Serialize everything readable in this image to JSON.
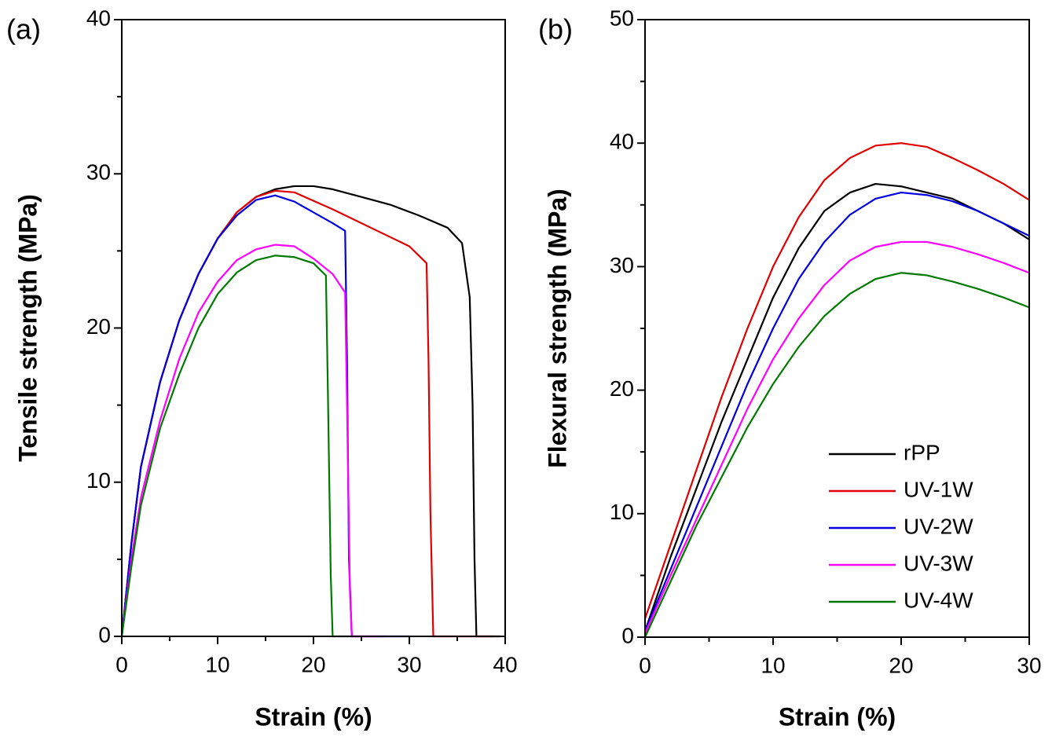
{
  "chart_data": [
    {
      "type": "line",
      "panel_label": "(a)",
      "x_label": "Strain (%)",
      "y_label": "Tensile strength (MPa)",
      "xlim": [
        0,
        40
      ],
      "xticks": [
        0,
        10,
        20,
        30,
        40
      ],
      "ylim": [
        0,
        40
      ],
      "yticks": [
        0,
        10,
        20,
        30,
        40
      ],
      "series": [
        {
          "color": "#000000",
          "x": [
            0,
            1,
            2,
            4,
            6,
            8,
            10,
            12,
            14,
            16,
            18,
            20,
            22,
            25,
            28,
            31,
            34,
            35.5,
            36.3,
            36.6,
            36.8,
            37,
            39.5
          ],
          "values": [
            0,
            6,
            11,
            16.5,
            20.5,
            23.5,
            25.8,
            27.5,
            28.5,
            29,
            29.2,
            29.2,
            29,
            28.5,
            28,
            27.3,
            26.5,
            25.5,
            22,
            15,
            5,
            0,
            0
          ]
        },
        {
          "color": "#e00000",
          "x": [
            0,
            1,
            2,
            4,
            6,
            8,
            10,
            12,
            14,
            16,
            18,
            22,
            26,
            30,
            31.8,
            32,
            32.2,
            32.5,
            39
          ],
          "values": [
            0,
            6,
            11,
            16.5,
            20.5,
            23.5,
            25.8,
            27.5,
            28.5,
            28.9,
            28.8,
            27.7,
            26.5,
            25.3,
            24.2,
            18,
            8,
            0,
            0
          ]
        },
        {
          "color": "#0000e0",
          "x": [
            0,
            1,
            2,
            4,
            6,
            8,
            10,
            12,
            14,
            16,
            18,
            20,
            22,
            23.3,
            23.5,
            23.7,
            24,
            30
          ],
          "values": [
            0,
            6,
            11,
            16.5,
            20.5,
            23.5,
            25.8,
            27.3,
            28.3,
            28.6,
            28.2,
            27.5,
            26.8,
            26.3,
            18,
            5,
            0,
            0
          ]
        },
        {
          "color": "#ff00ff",
          "x": [
            0,
            1,
            2,
            4,
            6,
            8,
            10,
            12,
            14,
            16,
            18,
            20,
            22,
            23.3,
            23.5,
            23.8,
            24,
            27.5
          ],
          "values": [
            0,
            5,
            9,
            14,
            18,
            21,
            23,
            24.4,
            25.1,
            25.4,
            25.3,
            24.5,
            23.5,
            22.3,
            15,
            3,
            0,
            0
          ]
        },
        {
          "color": "#007a00",
          "x": [
            0,
            1,
            2,
            4,
            6,
            8,
            10,
            12,
            14,
            16,
            18,
            20,
            21.3,
            21.5,
            21.8,
            22,
            24
          ],
          "values": [
            0,
            4.5,
            8.5,
            13.5,
            17,
            20,
            22.2,
            23.6,
            24.4,
            24.7,
            24.6,
            24.2,
            23.4,
            16,
            4,
            0,
            0
          ]
        }
      ]
    },
    {
      "type": "line",
      "panel_label": "(b)",
      "x_label": "Strain (%)",
      "y_label": "Flexural strength (MPa)",
      "xlim": [
        0,
        30
      ],
      "xticks": [
        0,
        10,
        20,
        30
      ],
      "ylim": [
        0,
        50
      ],
      "yticks": [
        0,
        10,
        20,
        30,
        40,
        50
      ],
      "legend": "lower right",
      "series": [
        {
          "name": "rPP",
          "color": "#000000",
          "x": [
            0,
            2,
            4,
            6,
            8,
            10,
            12,
            14,
            16,
            18,
            20,
            22,
            24,
            26,
            28,
            30
          ],
          "values": [
            0.5,
            6.5,
            12,
            17.5,
            22.5,
            27.5,
            31.5,
            34.5,
            36,
            36.7,
            36.5,
            36,
            35.5,
            34.5,
            33.5,
            32.2
          ]
        },
        {
          "name": "UV-1W",
          "color": "#e00000",
          "x": [
            0,
            2,
            4,
            6,
            8,
            10,
            12,
            14,
            16,
            18,
            20,
            22,
            24,
            26,
            28,
            30
          ],
          "values": [
            1.5,
            7.5,
            13.5,
            19.5,
            25,
            30,
            34,
            37,
            38.8,
            39.8,
            40,
            39.7,
            38.8,
            37.8,
            36.7,
            35.4
          ]
        },
        {
          "name": "UV-2W",
          "color": "#0000e0",
          "x": [
            0,
            2,
            4,
            6,
            8,
            10,
            12,
            14,
            16,
            18,
            20,
            22,
            24,
            26,
            28,
            30
          ],
          "values": [
            0.5,
            5.5,
            10.5,
            15.5,
            20.5,
            25,
            29,
            32,
            34.2,
            35.5,
            36,
            35.8,
            35.3,
            34.5,
            33.5,
            32.5
          ]
        },
        {
          "name": "UV-3W",
          "color": "#ff00ff",
          "x": [
            0,
            2,
            4,
            6,
            8,
            10,
            12,
            14,
            16,
            18,
            20,
            22,
            24,
            26,
            28,
            30
          ],
          "values": [
            0.3,
            5,
            9.5,
            14,
            18.5,
            22.5,
            25.8,
            28.5,
            30.5,
            31.6,
            32,
            32,
            31.6,
            31,
            30.3,
            29.5
          ]
        },
        {
          "name": "UV-4W",
          "color": "#007a00",
          "x": [
            0,
            2,
            4,
            6,
            8,
            10,
            12,
            14,
            16,
            18,
            20,
            22,
            24,
            26,
            28,
            30
          ],
          "values": [
            0,
            4.5,
            9,
            13,
            17,
            20.5,
            23.5,
            26,
            27.8,
            29,
            29.5,
            29.3,
            28.8,
            28.2,
            27.5,
            26.7
          ]
        }
      ]
    }
  ]
}
